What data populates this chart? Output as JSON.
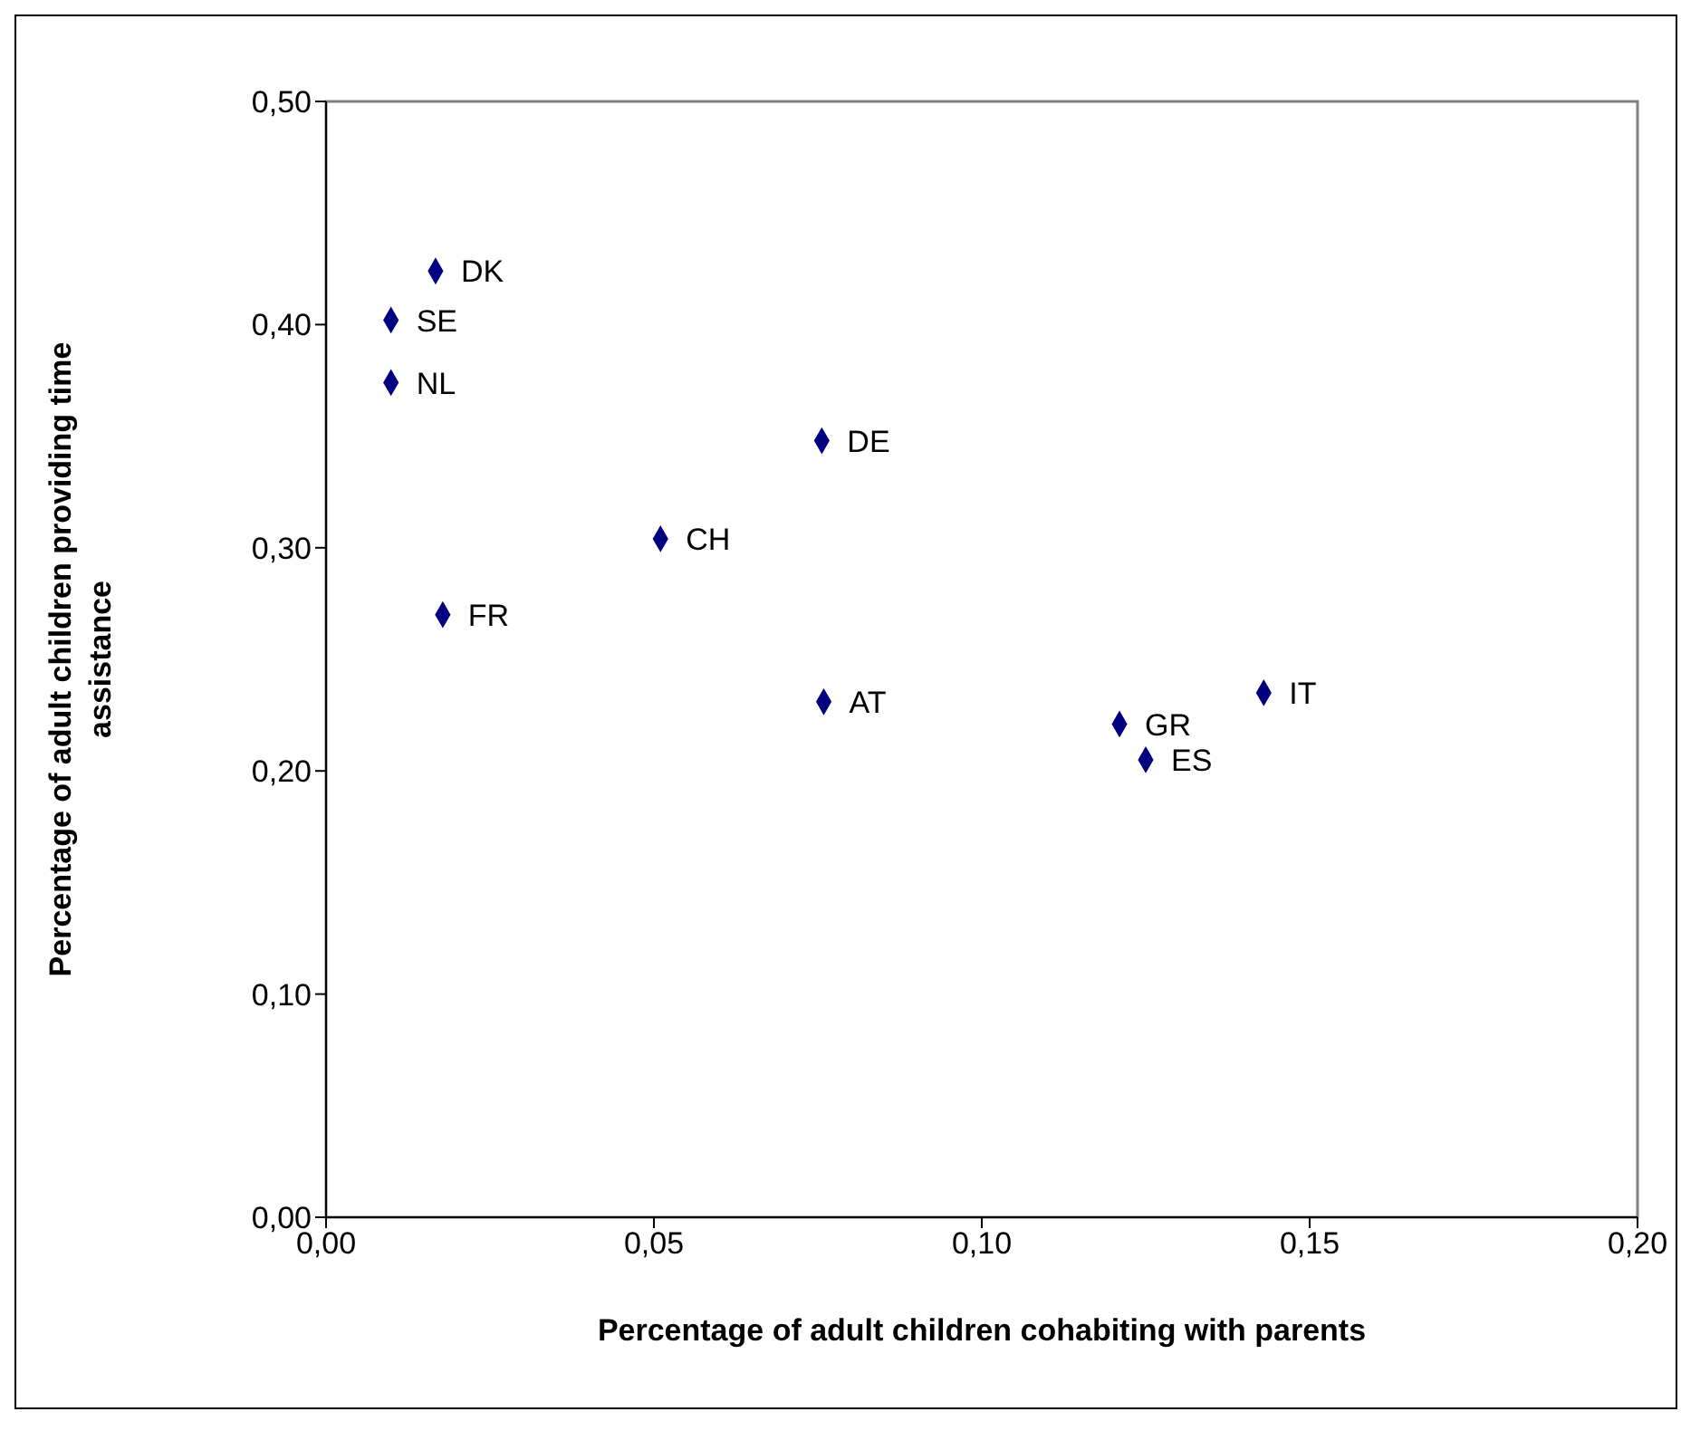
{
  "chart_data": {
    "type": "scatter",
    "xlabel": "Percentage of adult children cohabiting with parents",
    "ylabel": "Percentage of adult children providing time assistance",
    "x": [
      0.0167,
      0.0099,
      0.0099,
      0.0756,
      0.051,
      0.0178,
      0.0759,
      0.121,
      0.125,
      0.143
    ],
    "values": [
      0.424,
      0.402,
      0.374,
      0.348,
      0.304,
      0.27,
      0.231,
      0.221,
      0.205,
      0.235
    ],
    "color": "#000080",
    "marker": "diamond",
    "grid": false,
    "legend": false,
    "xlim": [
      0,
      0.2
    ],
    "xticks": [
      {
        "value": 0,
        "label": "0,00"
      },
      {
        "value": 0.05,
        "label": "0,05"
      },
      {
        "value": 0.1,
        "label": "0,10"
      },
      {
        "value": 0.15,
        "label": "0,15"
      },
      {
        "value": 0.2,
        "label": "0,20"
      }
    ],
    "ylim": [
      0,
      0.5
    ],
    "yticks": [
      {
        "value": 0,
        "label": "0,00"
      },
      {
        "value": 0.1,
        "label": "0,10"
      },
      {
        "value": 0.2,
        "label": "0,20"
      },
      {
        "value": 0.3,
        "label": "0,30"
      },
      {
        "value": 0.4,
        "label": "0,40"
      },
      {
        "value": 0.5,
        "label": "0,50"
      }
    ],
    "annotations": [
      {
        "text": "DK",
        "x": 0.0167,
        "y": 0.424
      },
      {
        "text": "SE",
        "x": 0.0099,
        "y": 0.402
      },
      {
        "text": "NL",
        "x": 0.0099,
        "y": 0.374
      },
      {
        "text": "DE",
        "x": 0.0756,
        "y": 0.348
      },
      {
        "text": "CH",
        "x": 0.051,
        "y": 0.304
      },
      {
        "text": "FR",
        "x": 0.0178,
        "y": 0.27
      },
      {
        "text": "AT",
        "x": 0.0759,
        "y": 0.231
      },
      {
        "text": "GR",
        "x": 0.121,
        "y": 0.221
      },
      {
        "text": "ES",
        "x": 0.125,
        "y": 0.205
      },
      {
        "text": "IT",
        "x": 0.143,
        "y": 0.235
      }
    ]
  }
}
